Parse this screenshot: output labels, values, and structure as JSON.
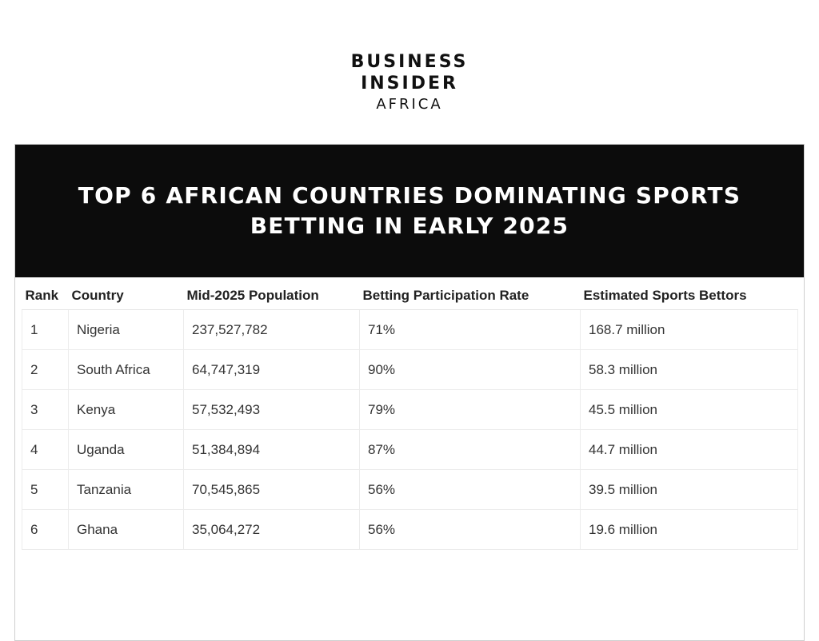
{
  "logo": {
    "line1": "BUSINESS",
    "line2": "INSIDER",
    "line3": "AFRICA"
  },
  "title": {
    "line1": "TOP 6 AFRICAN COUNTRIES DOMINATING SPORTS",
    "line2": "BETTING IN EARLY 2025"
  },
  "table": {
    "headers": [
      "Rank",
      "Country",
      "Mid-2025 Population",
      "Betting Participation Rate",
      "Estimated Sports Bettors"
    ],
    "rows": [
      [
        "1",
        "Nigeria",
        "237,527,782",
        "71%",
        "168.7 million"
      ],
      [
        "2",
        "South Africa",
        "64,747,319",
        "90%",
        "58.3 million"
      ],
      [
        "3",
        "Kenya",
        "57,532,493",
        "79%",
        "45.5 million"
      ],
      [
        "4",
        "Uganda",
        "51,384,894",
        "87%",
        "44.7 million"
      ],
      [
        "5",
        "Tanzania",
        "70,545,865",
        "56%",
        "39.5 million"
      ],
      [
        "6",
        "Ghana",
        "35,064,272",
        "56%",
        "19.6 million"
      ]
    ]
  }
}
